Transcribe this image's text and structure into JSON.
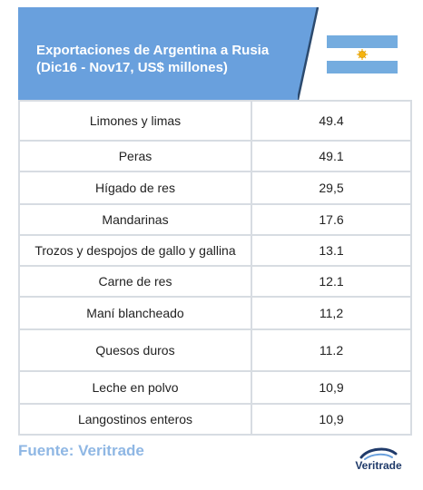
{
  "header": {
    "title_line1": "Exportaciones de Argentina a Rusia",
    "title_line2": "(Dic16 - Nov17, US$ millones)",
    "flag_icon": "argentina-flag-icon"
  },
  "table": {
    "rows": [
      {
        "product": "Limones y limas",
        "value": "49.4"
      },
      {
        "product": "Peras",
        "value": "49.1"
      },
      {
        "product": "Hígado de res",
        "value": "29,5"
      },
      {
        "product": "Mandarinas",
        "value": "17.6"
      },
      {
        "product": "Trozos y despojos de gallo y gallina",
        "value": "13.1"
      },
      {
        "product": "Carne de res",
        "value": "12.1"
      },
      {
        "product": "Maní blancheado",
        "value": "11,2"
      },
      {
        "product": "Quesos duros",
        "value": "11.2"
      },
      {
        "product": "Leche en polvo",
        "value": "10,9"
      },
      {
        "product": "Langostinos enteros",
        "value": "10,9"
      }
    ]
  },
  "footer": {
    "source": "Fuente: Veritrade",
    "logo_text": "Veritrade"
  },
  "colors": {
    "header_bg": "#69a0dd",
    "flag_blue": "#74acdf",
    "sun": "#f6b40e",
    "grid": "#d7dce2",
    "source_text": "#8fb7e4"
  }
}
